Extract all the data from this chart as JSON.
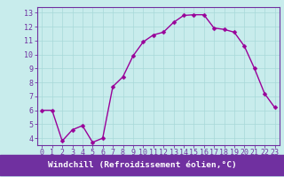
{
  "x": [
    0,
    1,
    2,
    3,
    4,
    5,
    6,
    7,
    8,
    9,
    10,
    11,
    12,
    13,
    14,
    15,
    16,
    17,
    18,
    19,
    20,
    21,
    22,
    23
  ],
  "y": [
    6.0,
    6.0,
    3.8,
    4.6,
    4.9,
    3.7,
    4.0,
    7.7,
    8.4,
    9.9,
    10.9,
    11.4,
    11.6,
    12.3,
    12.8,
    12.85,
    12.85,
    11.9,
    11.8,
    11.6,
    10.6,
    9.0,
    7.2,
    6.2
  ],
  "line_color": "#990099",
  "marker": "D",
  "marker_size": 2.5,
  "line_width": 1.0,
  "bg_color": "#c8ecec",
  "grid_color": "#a8d8d8",
  "xlabel": "Windchill (Refroidissement éolien,°C)",
  "xlabel_fontsize": 6.8,
  "tick_fontsize": 6.0,
  "xlim": [
    -0.5,
    23.5
  ],
  "ylim": [
    3.5,
    13.4
  ],
  "yticks": [
    4,
    5,
    6,
    7,
    8,
    9,
    10,
    11,
    12,
    13
  ],
  "xtick_labels": [
    "0",
    "1",
    "2",
    "3",
    "4",
    "5",
    "6",
    "7",
    "8",
    "9",
    "10",
    "11",
    "12",
    "13",
    "14",
    "15",
    "16",
    "17",
    "18",
    "19",
    "20",
    "21",
    "22",
    "23"
  ],
  "label_bar_color": "#7030a0",
  "spine_color": "#7030a0",
  "label_text_color": "white"
}
